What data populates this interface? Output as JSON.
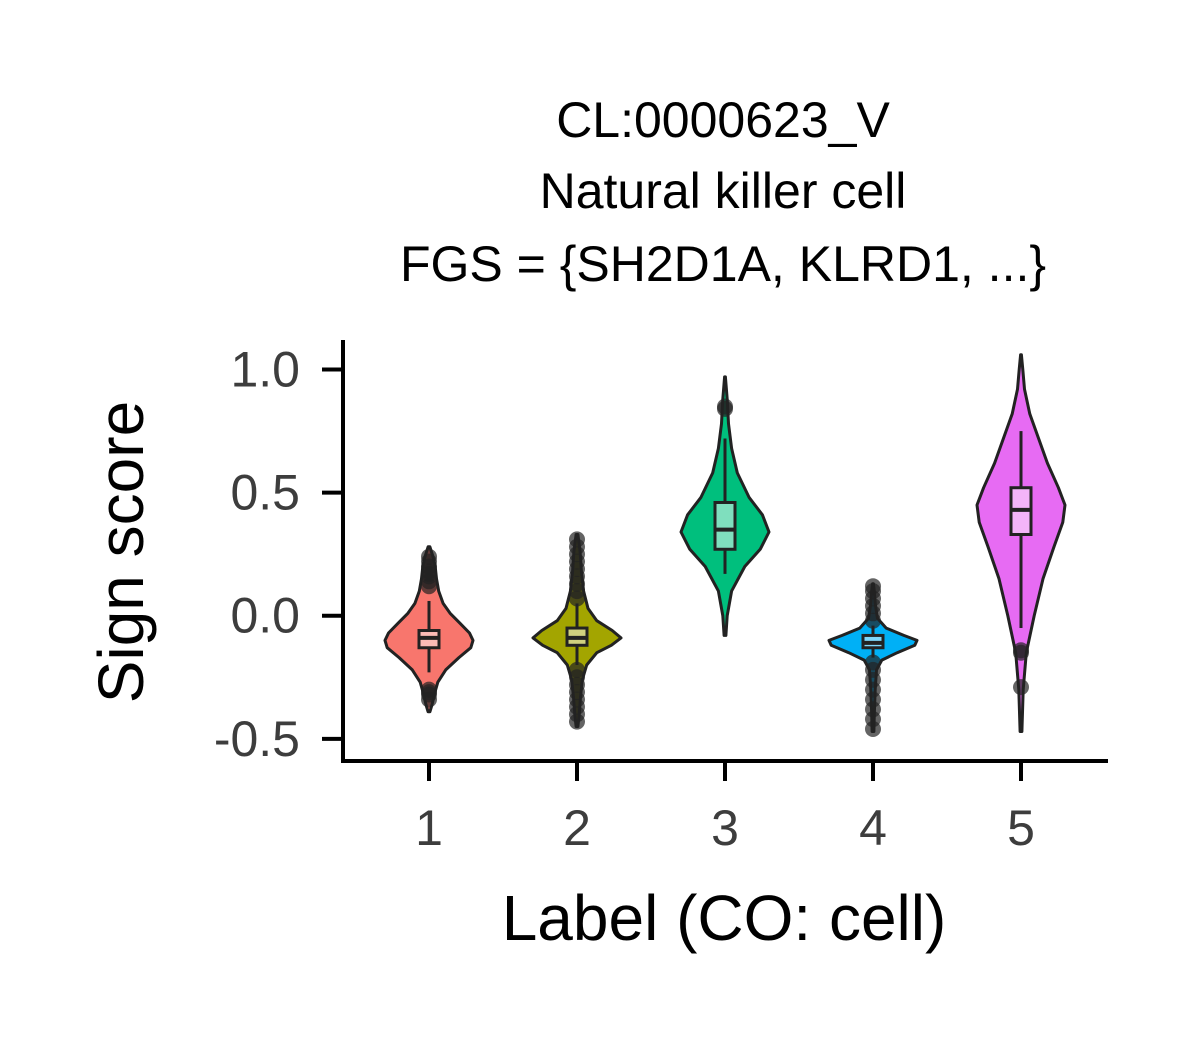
{
  "chart_data": {
    "type": "violin",
    "title_lines": [
      "CL:0000623_V",
      "Natural killer cell",
      "FGS = {SH2D1A, KLRD1, ...}"
    ],
    "xlabel": "Label (CO: cell)",
    "ylabel": "Sign score",
    "categories": [
      "1",
      "2",
      "3",
      "4",
      "5"
    ],
    "yticks": [
      -0.5,
      0.0,
      0.5,
      1.0
    ],
    "ytick_labels": [
      "-0.5",
      "0.0",
      "0.5",
      "1.0"
    ],
    "ylim": [
      -0.59,
      1.12
    ],
    "grid": false,
    "legend": "none",
    "series": [
      {
        "category": "1",
        "color": "#f8766d",
        "box_color": "#fbbbb6",
        "y_min": -0.39,
        "y_max": 0.28,
        "q1": -0.13,
        "median": -0.09,
        "q3": -0.06,
        "whisker_low": -0.23,
        "whisker_high": 0.06,
        "outliers": [
          -0.34,
          -0.32,
          -0.31,
          -0.3,
          0.12,
          0.14,
          0.16,
          0.17,
          0.18,
          0.2,
          0.22,
          0.24
        ],
        "density": [
          [
            -0.39,
            0.02
          ],
          [
            -0.36,
            0.07
          ],
          [
            -0.32,
            0.12
          ],
          [
            -0.27,
            0.2
          ],
          [
            -0.22,
            0.38
          ],
          [
            -0.17,
            0.68
          ],
          [
            -0.13,
            0.95
          ],
          [
            -0.1,
            1.0
          ],
          [
            -0.07,
            0.92
          ],
          [
            -0.03,
            0.7
          ],
          [
            0.01,
            0.48
          ],
          [
            0.05,
            0.32
          ],
          [
            0.1,
            0.22
          ],
          [
            0.15,
            0.17
          ],
          [
            0.2,
            0.14
          ],
          [
            0.24,
            0.09
          ],
          [
            0.28,
            0.02
          ]
        ]
      },
      {
        "category": "2",
        "color": "#a3a500",
        "box_color": "#d0d17f",
        "y_min": -0.45,
        "y_max": 0.33,
        "q1": -0.12,
        "median": -0.09,
        "q3": -0.05,
        "whisker_low": -0.2,
        "whisker_high": 0.05,
        "outliers": [
          -0.43,
          -0.4,
          -0.37,
          -0.34,
          -0.31,
          -0.28,
          -0.25,
          -0.22,
          0.07,
          0.1,
          0.13,
          0.16,
          0.19,
          0.22,
          0.25,
          0.28,
          0.31
        ],
        "density": [
          [
            -0.45,
            0.02
          ],
          [
            -0.4,
            0.05
          ],
          [
            -0.33,
            0.08
          ],
          [
            -0.26,
            0.12
          ],
          [
            -0.2,
            0.22
          ],
          [
            -0.15,
            0.45
          ],
          [
            -0.12,
            0.78
          ],
          [
            -0.09,
            1.0
          ],
          [
            -0.06,
            0.8
          ],
          [
            -0.02,
            0.45
          ],
          [
            0.03,
            0.25
          ],
          [
            0.1,
            0.15
          ],
          [
            0.18,
            0.1
          ],
          [
            0.26,
            0.07
          ],
          [
            0.33,
            0.02
          ]
        ]
      },
      {
        "category": "3",
        "color": "#00bf7d",
        "box_color": "#7fdfbe",
        "y_min": -0.08,
        "y_max": 0.97,
        "q1": 0.27,
        "median": 0.35,
        "q3": 0.46,
        "whisker_low": 0.17,
        "whisker_high": 0.72,
        "outliers": [
          0.84,
          0.85
        ],
        "density": [
          [
            -0.08,
            0.02
          ],
          [
            0.0,
            0.05
          ],
          [
            0.1,
            0.15
          ],
          [
            0.2,
            0.45
          ],
          [
            0.27,
            0.8
          ],
          [
            0.34,
            1.0
          ],
          [
            0.41,
            0.85
          ],
          [
            0.48,
            0.55
          ],
          [
            0.58,
            0.28
          ],
          [
            0.68,
            0.15
          ],
          [
            0.78,
            0.08
          ],
          [
            0.88,
            0.05
          ],
          [
            0.97,
            0.01
          ]
        ]
      },
      {
        "category": "4",
        "color": "#00b0f6",
        "box_color": "#7fd7fa",
        "y_min": -0.47,
        "y_max": 0.13,
        "q1": -0.13,
        "median": -0.11,
        "q3": -0.08,
        "whisker_low": -0.17,
        "whisker_high": -0.04,
        "outliers": [
          -0.46,
          -0.42,
          -0.38,
          -0.34,
          -0.3,
          -0.26,
          -0.22,
          -0.19,
          -0.02,
          0.01,
          0.04,
          0.07,
          0.1,
          0.12
        ],
        "density": [
          [
            -0.47,
            0.02
          ],
          [
            -0.4,
            0.03
          ],
          [
            -0.3,
            0.05
          ],
          [
            -0.22,
            0.08
          ],
          [
            -0.18,
            0.2
          ],
          [
            -0.15,
            0.55
          ],
          [
            -0.12,
            0.95
          ],
          [
            -0.1,
            1.0
          ],
          [
            -0.08,
            0.7
          ],
          [
            -0.05,
            0.3
          ],
          [
            -0.01,
            0.1
          ],
          [
            0.05,
            0.05
          ],
          [
            0.1,
            0.03
          ],
          [
            0.13,
            0.01
          ]
        ]
      },
      {
        "category": "5",
        "color": "#e76bf3",
        "box_color": "#f3b5f9",
        "y_min": -0.47,
        "y_max": 1.06,
        "q1": 0.33,
        "median": 0.43,
        "q3": 0.52,
        "whisker_low": -0.05,
        "whisker_high": 0.75,
        "outliers": [
          -0.14,
          -0.15,
          -0.29
        ],
        "density": [
          [
            -0.47,
            0.02
          ],
          [
            -0.3,
            0.05
          ],
          [
            -0.15,
            0.12
          ],
          [
            0.0,
            0.3
          ],
          [
            0.15,
            0.5
          ],
          [
            0.28,
            0.75
          ],
          [
            0.38,
            0.95
          ],
          [
            0.45,
            1.0
          ],
          [
            0.52,
            0.85
          ],
          [
            0.62,
            0.6
          ],
          [
            0.72,
            0.4
          ],
          [
            0.82,
            0.2
          ],
          [
            0.92,
            0.08
          ],
          [
            1.0,
            0.04
          ],
          [
            1.06,
            0.01
          ]
        ]
      }
    ]
  }
}
